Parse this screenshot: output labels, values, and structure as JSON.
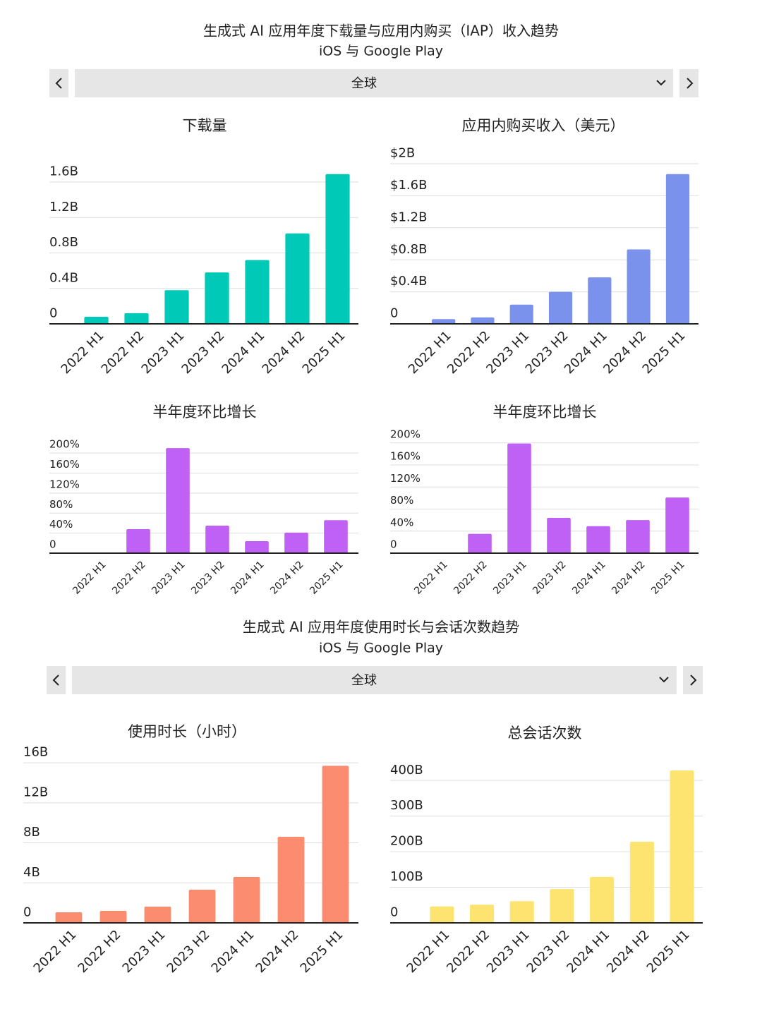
{
  "sections": [
    {
      "title": "生成式 AI 应用年度下载量与应用内购买（IAP）收入趋势",
      "subtitle": "iOS 与 Google Play",
      "selector": "全球"
    },
    {
      "title": "生成式 AI 应用年度使用时长与会话次数趋势",
      "subtitle": "iOS 与 Google Play",
      "selector": "全球"
    }
  ],
  "chart_data": [
    {
      "type": "bar",
      "title": "下载量",
      "categories": [
        "2022 H1",
        "2022 H2",
        "2023 H1",
        "2023 H2",
        "2024 H1",
        "2024 H2",
        "2025 H1"
      ],
      "values": [
        0.08,
        0.12,
        0.38,
        0.58,
        0.72,
        1.02,
        1.69
      ],
      "color": "#00c9b7",
      "ylim": [
        0,
        1.7
      ],
      "yticks": [
        0,
        {
          "value": 0.4,
          "label": "0.4B"
        },
        {
          "value": 0.8,
          "label": "0.8B"
        },
        {
          "value": 1.2,
          "label": "1.2B"
        },
        {
          "value": 1.6,
          "label": "1.6B"
        }
      ],
      "grid": true
    },
    {
      "type": "bar",
      "title": "应用内购买收入（美元）",
      "categories": [
        "2022 H1",
        "2022 H2",
        "2023 H1",
        "2023 H2",
        "2024 H1",
        "2024 H2",
        "2025 H1"
      ],
      "values": [
        0.06,
        0.08,
        0.24,
        0.4,
        0.58,
        0.93,
        1.87
      ],
      "color": "#7b92ec",
      "ylim": [
        0,
        2
      ],
      "yticks": [
        0,
        {
          "value": 0.4,
          "label": "$0.4B"
        },
        {
          "value": 0.8,
          "label": "$0.8B"
        },
        {
          "value": 1.2,
          "label": "$1.2B"
        },
        {
          "value": 1.6,
          "label": "$1.6B"
        },
        {
          "value": 2,
          "label": "$2B"
        }
      ],
      "grid": true
    },
    {
      "type": "bar",
      "title": "半年度环比增长",
      "categories": [
        "2022 H1",
        "2022 H2",
        "2023 H1",
        "2023 H2",
        "2024 H1",
        "2024 H2",
        "2025 H1"
      ],
      "values": [
        0,
        48,
        210,
        55,
        24,
        41,
        66
      ],
      "color": "#c061f6",
      "ylim": [
        0,
        220
      ],
      "yticks": [
        0,
        {
          "value": 40,
          "label": "40%"
        },
        {
          "value": 80,
          "label": "80%"
        },
        {
          "value": 120,
          "label": "120%"
        },
        {
          "value": 160,
          "label": "160%"
        },
        {
          "value": 200,
          "label": "200%"
        }
      ],
      "grid": true
    },
    {
      "type": "bar",
      "title": "半年度环比增长",
      "categories": [
        "2022 H1",
        "2022 H2",
        "2023 H1",
        "2023 H2",
        "2024 H1",
        "2024 H2",
        "2025 H1"
      ],
      "values": [
        0,
        35,
        199,
        64,
        49,
        60,
        101
      ],
      "color": "#c061f6",
      "ylim": [
        0,
        210
      ],
      "yticks": [
        0,
        {
          "value": 40,
          "label": "40%"
        },
        {
          "value": 80,
          "label": "80%"
        },
        {
          "value": 120,
          "label": "120%"
        },
        {
          "value": 160,
          "label": "160%"
        },
        {
          "value": 200,
          "label": "200%"
        }
      ],
      "grid": true
    },
    {
      "type": "bar",
      "title": "使用时长（小时）",
      "categories": [
        "2022 H1",
        "2022 H2",
        "2023 H1",
        "2023 H2",
        "2024 H1",
        "2024 H2",
        "2025 H1"
      ],
      "values": [
        1.06,
        1.2,
        1.62,
        3.31,
        4.58,
        8.6,
        15.7
      ],
      "color": "#fb8c70",
      "ylim": [
        0,
        16.5
      ],
      "yticks": [
        0,
        {
          "value": 4,
          "label": "4B"
        },
        {
          "value": 8,
          "label": "8B"
        },
        {
          "value": 12,
          "label": "12B"
        },
        {
          "value": 16,
          "label": "16B"
        }
      ],
      "grid": true
    },
    {
      "type": "bar",
      "title": "总会话次数",
      "categories": [
        "2022 H1",
        "2022 H2",
        "2023 H1",
        "2023 H2",
        "2024 H1",
        "2024 H2",
        "2025 H1"
      ],
      "values": [
        46,
        51,
        61,
        95,
        129,
        228,
        428
      ],
      "color": "#fde36f",
      "ylim": [
        0,
        440
      ],
      "yticks": [
        0,
        {
          "value": 100,
          "label": "100B"
        },
        {
          "value": 200,
          "label": "200B"
        },
        {
          "value": 300,
          "label": "300B"
        },
        {
          "value": 400,
          "label": "400B"
        }
      ],
      "grid": true
    }
  ]
}
